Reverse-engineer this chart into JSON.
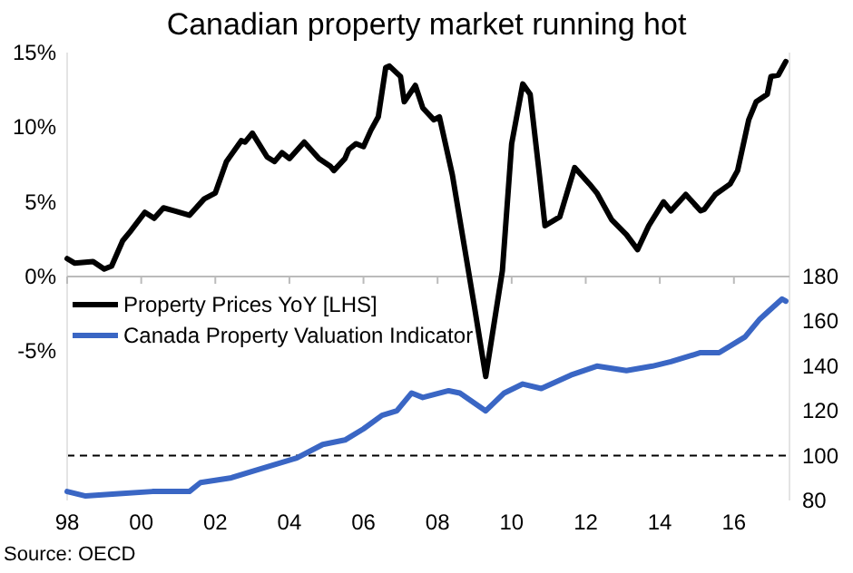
{
  "chart_data": {
    "type": "line",
    "title": "Canadian property market running hot",
    "annotations": [
      "Source: OECD"
    ],
    "xlim": [
      1998,
      2017.5
    ],
    "xticks": [
      {
        "value": 1998,
        "label": "98"
      },
      {
        "value": 2000,
        "label": "00"
      },
      {
        "value": 2002,
        "label": "02"
      },
      {
        "value": 2004,
        "label": "04"
      },
      {
        "value": 2006,
        "label": "06"
      },
      {
        "value": 2008,
        "label": "08"
      },
      {
        "value": 2010,
        "label": "10"
      },
      {
        "value": 2012,
        "label": "12"
      },
      {
        "value": 2014,
        "label": "14"
      },
      {
        "value": 2016,
        "label": "16"
      }
    ],
    "ylim": [
      -15,
      15
    ],
    "yticks": [
      {
        "value": -5,
        "label": "-5%"
      },
      {
        "value": 0,
        "label": "0%"
      },
      {
        "value": 5,
        "label": "5%"
      },
      {
        "value": 10,
        "label": "10%"
      },
      {
        "value": 15,
        "label": "15%"
      }
    ],
    "y2lim": [
      80,
      280
    ],
    "y2ticks": [
      80,
      100,
      120,
      140,
      160,
      180
    ],
    "legend": "left",
    "ref_lines": [
      {
        "axis": "y2",
        "value": 100,
        "color": "#000000",
        "line_style": "dashed"
      }
    ],
    "series": [
      {
        "name": "Property Prices YoY [LHS]",
        "color": "#000000",
        "x": [
          1998.0,
          1998.2,
          1998.7,
          1999.0,
          1999.2,
          1999.5,
          1999.7,
          2000.1,
          2000.35,
          2000.6,
          2000.9,
          2001.3,
          2001.7,
          2002.0,
          2002.3,
          2002.7,
          2002.8,
          2003.0,
          2003.4,
          2003.6,
          2003.8,
          2004.0,
          2004.4,
          2004.8,
          2005.1,
          2005.2,
          2005.5,
          2005.6,
          2005.8,
          2006.0,
          2006.2,
          2006.4,
          2006.6,
          2006.7,
          2007.0,
          2007.1,
          2007.4,
          2007.6,
          2007.9,
          2008.05,
          2008.4,
          2009.0,
          2009.3,
          2009.75,
          2010.0,
          2010.3,
          2010.5,
          2010.75,
          2010.9,
          2011.3,
          2011.7,
          2012.1,
          2012.3,
          2012.7,
          2013.1,
          2013.4,
          2013.7,
          2014.1,
          2014.3,
          2014.7,
          2015.1,
          2015.2,
          2015.5,
          2015.9,
          2016.1,
          2016.4,
          2016.6,
          2016.9,
          2017.0,
          2017.2,
          2017.4
        ],
        "values": [
          1.2,
          0.9,
          1.0,
          0.5,
          0.7,
          2.4,
          3.0,
          4.3,
          3.9,
          4.6,
          4.4,
          4.1,
          5.2,
          5.6,
          7.7,
          9.1,
          9.0,
          9.6,
          8.0,
          7.7,
          8.3,
          7.9,
          9.0,
          7.9,
          7.4,
          7.1,
          7.9,
          8.5,
          8.9,
          8.7,
          9.8,
          10.7,
          14.0,
          14.1,
          13.4,
          11.7,
          12.8,
          11.3,
          10.5,
          10.7,
          6.8,
          -2.1,
          -6.7,
          0.4,
          8.9,
          12.9,
          12.2,
          6.8,
          3.4,
          4.0,
          7.3,
          6.2,
          5.6,
          3.8,
          2.8,
          1.8,
          3.4,
          5.0,
          4.4,
          5.5,
          4.4,
          4.5,
          5.5,
          6.2,
          7.1,
          10.5,
          11.7,
          12.2,
          13.4,
          13.5,
          14.4
        ]
      },
      {
        "name": "Canada Property Valuation Indicator",
        "color": "#3a66c4",
        "axis": "y2",
        "x": [
          1998.0,
          1998.5,
          1999.4,
          2000.3,
          2001.3,
          2001.6,
          2002.4,
          2003.2,
          2004.2,
          2004.9,
          2005.5,
          2006.0,
          2006.5,
          2006.9,
          2007.3,
          2007.6,
          2008.3,
          2008.6,
          2009.3,
          2009.8,
          2010.3,
          2010.8,
          2011.6,
          2012.3,
          2013.1,
          2013.8,
          2014.3,
          2015.1,
          2015.6,
          2016.3,
          2016.7,
          2016.9,
          2017.3,
          2017.4
        ],
        "values": [
          84,
          82,
          83,
          84,
          84,
          88,
          90,
          94,
          99,
          105,
          107,
          112,
          118,
          120,
          128,
          126,
          129,
          128,
          120,
          128,
          132,
          130,
          136,
          140,
          138,
          140,
          142,
          146,
          146,
          153,
          161,
          164,
          170,
          169
        ]
      }
    ]
  }
}
